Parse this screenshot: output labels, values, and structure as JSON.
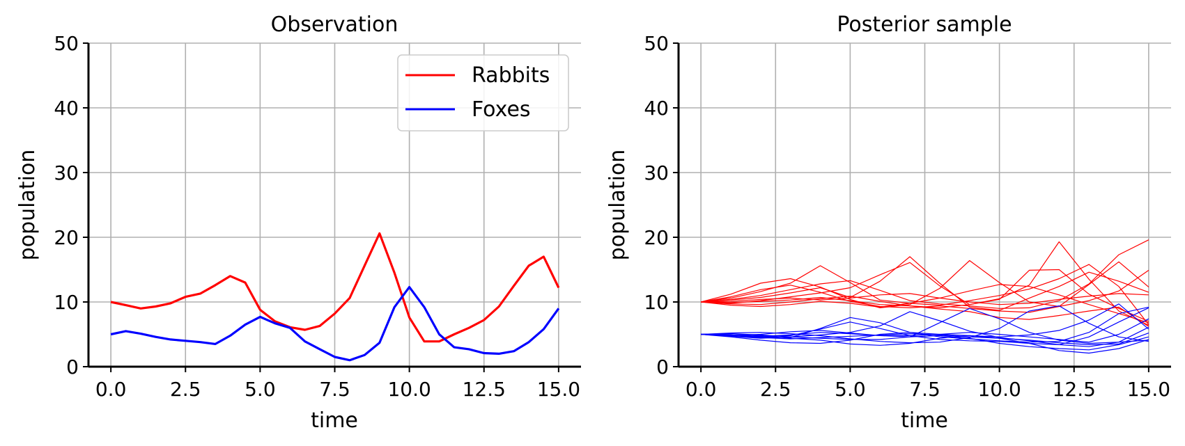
{
  "chart_data": [
    {
      "type": "line",
      "title": "Observation",
      "xlabel": "time",
      "ylabel": "population",
      "xlim": [
        -0.75,
        15.75
      ],
      "ylim": [
        0,
        50
      ],
      "xticks": [
        "0.0",
        "2.5",
        "5.0",
        "7.5",
        "10.0",
        "12.5",
        "15.0"
      ],
      "yticks": [
        "0",
        "10",
        "20",
        "30",
        "40",
        "50"
      ],
      "grid": true,
      "legend": "top-right",
      "legend_entries": [
        "Rabbits",
        "Foxes"
      ],
      "series": [
        {
          "name": "Rabbits",
          "color": "#ff0000",
          "x": [
            0.0,
            0.5,
            1.0,
            1.5,
            2.0,
            2.5,
            3.0,
            3.5,
            4.0,
            4.5,
            5.0,
            5.5,
            6.0,
            6.5,
            7.0,
            7.5,
            8.0,
            8.5,
            9.0,
            9.5,
            10.0,
            10.5,
            11.0,
            11.5,
            12.0,
            12.5,
            13.0,
            13.5,
            14.0,
            14.5,
            15.0
          ],
          "values": [
            10.0,
            9.5,
            9.0,
            9.3,
            9.8,
            10.8,
            11.3,
            12.6,
            14.0,
            13.0,
            8.8,
            7.0,
            6.1,
            5.7,
            6.3,
            8.2,
            10.6,
            15.6,
            20.6,
            14.5,
            7.6,
            3.9,
            3.9,
            5.0,
            6.0,
            7.2,
            9.3,
            12.5,
            15.6,
            17.0,
            12.2
          ]
        },
        {
          "name": "Foxes",
          "color": "#0000ff",
          "x": [
            0.0,
            0.5,
            1.0,
            1.5,
            2.0,
            2.5,
            3.0,
            3.5,
            4.0,
            4.5,
            5.0,
            5.5,
            6.0,
            6.5,
            7.0,
            7.5,
            8.0,
            8.5,
            9.0,
            9.5,
            10.0,
            10.5,
            11.0,
            11.5,
            12.0,
            12.5,
            13.0,
            13.5,
            14.0,
            14.5,
            15.0
          ],
          "values": [
            5.0,
            5.5,
            5.1,
            4.6,
            4.2,
            4.0,
            3.8,
            3.5,
            4.8,
            6.5,
            7.7,
            6.7,
            6.0,
            3.9,
            2.7,
            1.5,
            1.0,
            1.8,
            3.7,
            9.2,
            12.3,
            9.2,
            5.0,
            3.0,
            2.7,
            2.1,
            2.0,
            2.4,
            3.8,
            5.8,
            9.0
          ]
        }
      ]
    },
    {
      "type": "line",
      "title": "Posterior sample",
      "xlabel": "time",
      "ylabel": "population",
      "xlim": [
        -0.75,
        15.75
      ],
      "ylim": [
        0,
        50
      ],
      "xticks": [
        "0.0",
        "2.5",
        "5.0",
        "7.5",
        "10.0",
        "12.5",
        "15.0"
      ],
      "yticks": [
        "0",
        "10",
        "20",
        "30",
        "40",
        "50"
      ],
      "grid": true,
      "x": [
        0.0,
        1.0,
        2.0,
        3.0,
        4.0,
        5.0,
        6.0,
        7.0,
        8.0,
        9.0,
        10.0,
        11.0,
        12.0,
        13.0,
        14.0,
        15.0
      ],
      "rabbit_color": "#ff0000",
      "fox_color": "#0000ff",
      "rabbit_samples": [
        [
          10.0,
          10.6,
          11.6,
          12.9,
          15.6,
          13.0,
          10.3,
          9.8,
          9.5,
          10.2,
          11.0,
          12.0,
          13.6,
          15.8,
          12.4,
          6.5
        ],
        [
          10.0,
          10.3,
          10.7,
          11.4,
          12.2,
          10.7,
          13.2,
          17.0,
          12.9,
          9.2,
          8.7,
          10.6,
          12.4,
          14.6,
          13.2,
          11.5
        ],
        [
          10.0,
          11.2,
          12.9,
          13.6,
          12.3,
          10.4,
          9.1,
          9.6,
          12.1,
          16.4,
          13.0,
          10.0,
          9.3,
          10.2,
          11.7,
          14.9
        ],
        [
          10.0,
          9.8,
          10.2,
          10.8,
          11.4,
          12.2,
          14.2,
          16.1,
          12.5,
          9.6,
          10.4,
          14.9,
          15.0,
          11.2,
          9.0,
          7.0
        ],
        [
          10.0,
          9.7,
          9.6,
          10.0,
          10.5,
          10.9,
          10.1,
          9.4,
          9.1,
          9.6,
          10.5,
          12.6,
          19.3,
          13.5,
          8.6,
          6.4
        ],
        [
          10.0,
          10.4,
          11.0,
          11.9,
          12.8,
          13.3,
          11.8,
          10.2,
          9.7,
          9.4,
          9.0,
          9.1,
          10.2,
          12.8,
          17.3,
          19.6
        ],
        [
          10.0,
          10.1,
          10.4,
          10.6,
          10.3,
          10.6,
          11.1,
          11.3,
          10.6,
          10.0,
          9.6,
          9.8,
          10.4,
          10.9,
          11.3,
          11.1
        ],
        [
          10.0,
          9.5,
          9.3,
          9.6,
          10.1,
          9.8,
          9.2,
          9.8,
          10.6,
          11.7,
          12.7,
          12.4,
          11.1,
          9.6,
          8.2,
          6.8
        ],
        [
          10.0,
          10.8,
          11.9,
          12.6,
          11.5,
          10.1,
          9.3,
          9.1,
          9.4,
          9.0,
          8.6,
          8.4,
          9.3,
          12.7,
          16.2,
          12.3
        ],
        [
          10.0,
          9.9,
          10.1,
          10.3,
          10.7,
          10.2,
          9.6,
          9.4,
          8.9,
          8.5,
          7.6,
          7.3,
          7.9,
          8.6,
          9.2,
          6.2
        ]
      ],
      "fox_samples": [
        [
          5.0,
          4.8,
          4.6,
          4.5,
          5.9,
          7.6,
          6.8,
          5.3,
          4.6,
          4.3,
          4.0,
          3.8,
          3.9,
          5.3,
          8.2,
          9.2
        ],
        [
          5.0,
          5.1,
          4.9,
          4.6,
          4.4,
          4.2,
          4.2,
          4.6,
          6.8,
          9.0,
          7.4,
          5.3,
          4.1,
          3.6,
          3.8,
          4.1
        ],
        [
          5.0,
          4.7,
          4.4,
          4.6,
          4.9,
          5.3,
          6.3,
          8.5,
          7.1,
          5.5,
          4.5,
          4.0,
          3.4,
          3.1,
          3.8,
          6.1
        ],
        [
          5.0,
          5.2,
          5.3,
          5.1,
          4.8,
          4.3,
          3.9,
          3.7,
          3.8,
          4.5,
          5.9,
          8.6,
          9.4,
          6.7,
          4.6,
          3.9
        ],
        [
          5.0,
          4.9,
          4.7,
          4.9,
          5.3,
          5.1,
          4.8,
          4.8,
          5.0,
          5.3,
          5.0,
          4.6,
          4.2,
          3.8,
          5.0,
          7.4
        ],
        [
          5.0,
          4.6,
          4.1,
          3.7,
          3.6,
          4.1,
          5.0,
          5.3,
          5.0,
          4.8,
          4.6,
          4.9,
          5.6,
          7.2,
          9.7,
          5.8
        ],
        [
          5.0,
          4.8,
          5.0,
          5.4,
          5.6,
          5.2,
          4.8,
          4.6,
          4.8,
          4.4,
          3.6,
          3.1,
          2.8,
          2.6,
          3.4,
          4.6
        ],
        [
          5.0,
          5.1,
          4.8,
          4.4,
          4.1,
          3.5,
          3.3,
          3.6,
          4.4,
          4.8,
          4.4,
          3.6,
          2.5,
          2.1,
          2.8,
          4.2
        ],
        [
          5.0,
          4.9,
          4.6,
          4.8,
          5.8,
          6.9,
          5.9,
          4.8,
          4.2,
          4.0,
          3.9,
          3.6,
          3.4,
          4.6,
          6.9,
          9.1
        ],
        [
          5.0,
          4.7,
          4.5,
          4.3,
          4.5,
          4.7,
          4.9,
          5.1,
          4.9,
          4.6,
          4.4,
          4.1,
          3.7,
          3.4,
          3.5,
          5.2
        ]
      ]
    }
  ]
}
